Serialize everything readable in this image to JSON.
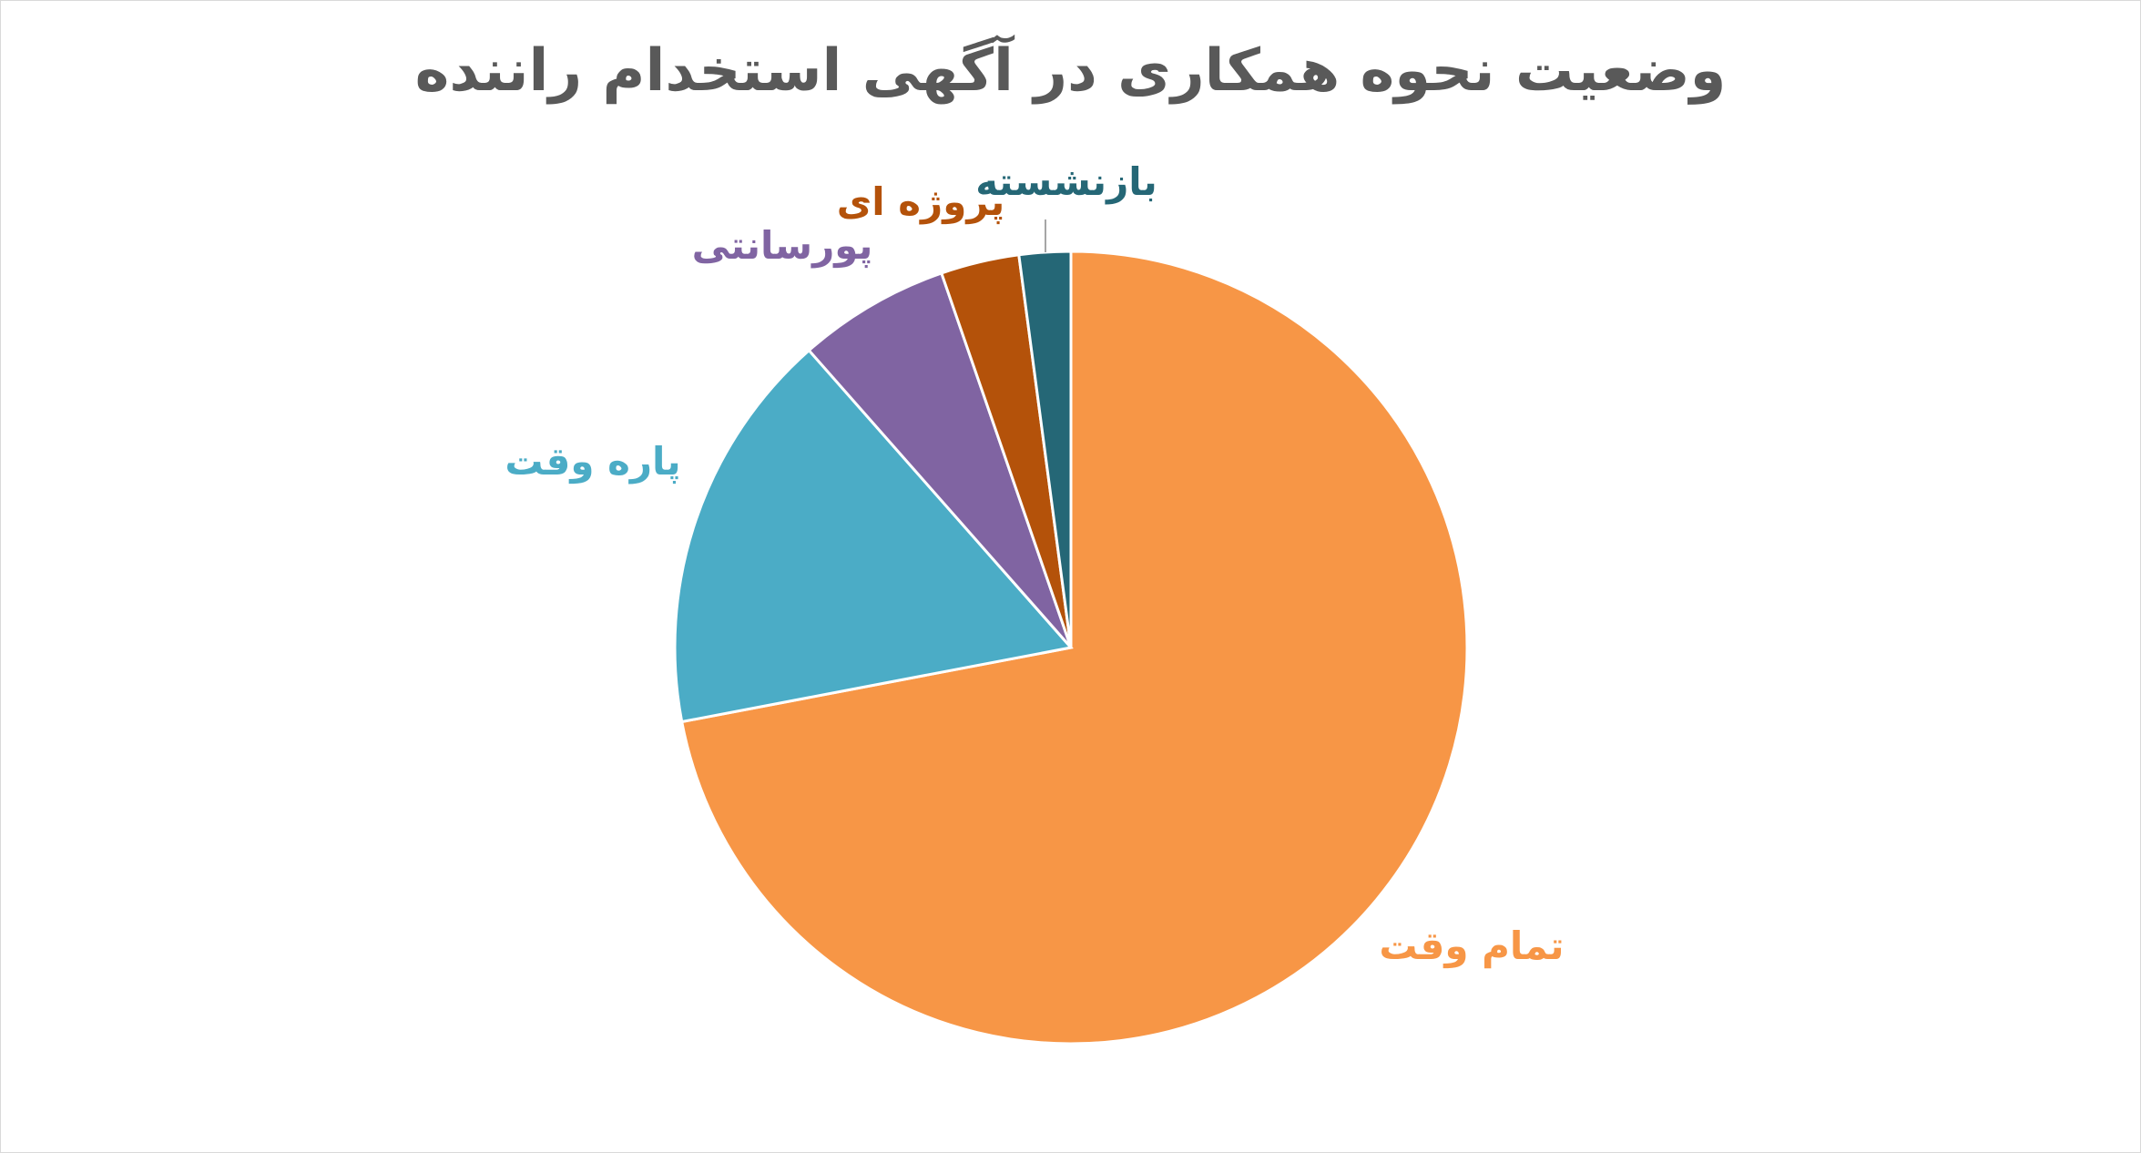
{
  "chart_data": {
    "type": "pie",
    "title": "وضعیت نحوه همکاری در آگهی استخدام راننده",
    "slices": [
      {
        "label": "تمام وقت",
        "value": 72,
        "color": "#F79646"
      },
      {
        "label": "پاره وقت",
        "value": 16.5,
        "color": "#4BACC6"
      },
      {
        "label": "پورسانتی",
        "value": 6.2,
        "color": "#8064A2"
      },
      {
        "label": "پروژه ای",
        "value": 3.2,
        "color": "#B4520A"
      },
      {
        "label": "بازنشسته",
        "value": 2.1,
        "color": "#256776"
      }
    ],
    "start_angle": "12 o'clock",
    "direction": "clockwise",
    "legend": "none",
    "data_labels": "category names outside slices"
  }
}
